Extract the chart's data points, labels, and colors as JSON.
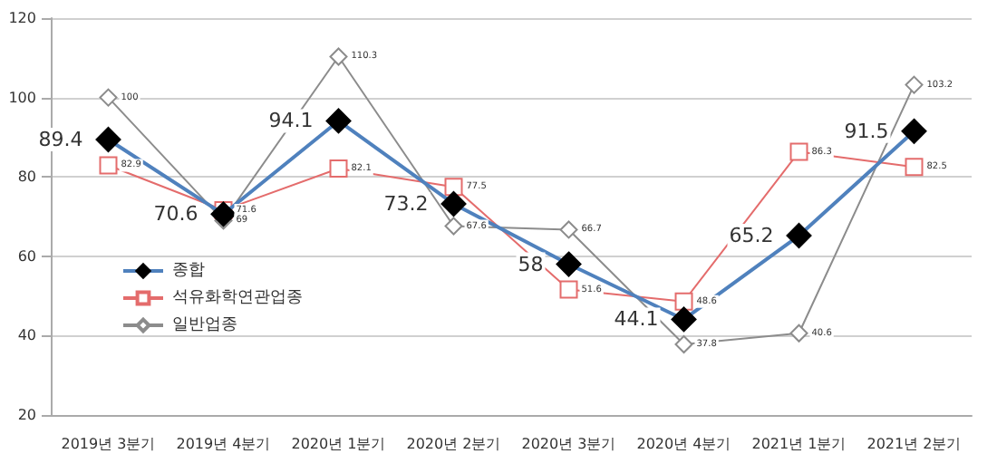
{
  "chart_data": {
    "type": "line",
    "categories": [
      "2019년 3분기",
      "2019년 4분기",
      "2020년 1분기",
      "2020년 2분기",
      "2020년 3분기",
      "2020년 4분기",
      "2021년 1분기",
      "2021년 2분기"
    ],
    "series": [
      {
        "name": "종합",
        "color": "#4f81bd",
        "marker": "diamond",
        "values": [
          89.4,
          70.6,
          94.1,
          73.2,
          58,
          44.1,
          65.2,
          91.5
        ],
        "value_labels": [
          "89.4",
          "70.6",
          "94.1",
          "73.2",
          "58",
          "44.1",
          "65.2",
          "91.5"
        ]
      },
      {
        "name": "석유화학연관업종",
        "color": "#e46c6c",
        "marker": "square",
        "values": [
          82.9,
          71.6,
          82.1,
          77.5,
          51.6,
          48.6,
          86.3,
          82.5
        ],
        "value_labels": [
          "82.9",
          "71.6",
          "82.1",
          "77.5",
          "51.6",
          "48.6",
          "86.3",
          "82.5"
        ]
      },
      {
        "name": "일반업종",
        "color": "#8c8c8c",
        "marker": "diamond",
        "values": [
          100,
          69,
          110.3,
          67.6,
          66.7,
          37.8,
          40.6,
          103.2
        ],
        "value_labels": [
          "100",
          "69",
          "110.3",
          "67.6",
          "66.7",
          "37.8",
          "40.6",
          "103.2"
        ]
      }
    ],
    "ylim": [
      20,
      120
    ],
    "yticks": [
      20,
      40,
      60,
      80,
      100,
      120
    ],
    "grid": "y",
    "legend": "left"
  }
}
